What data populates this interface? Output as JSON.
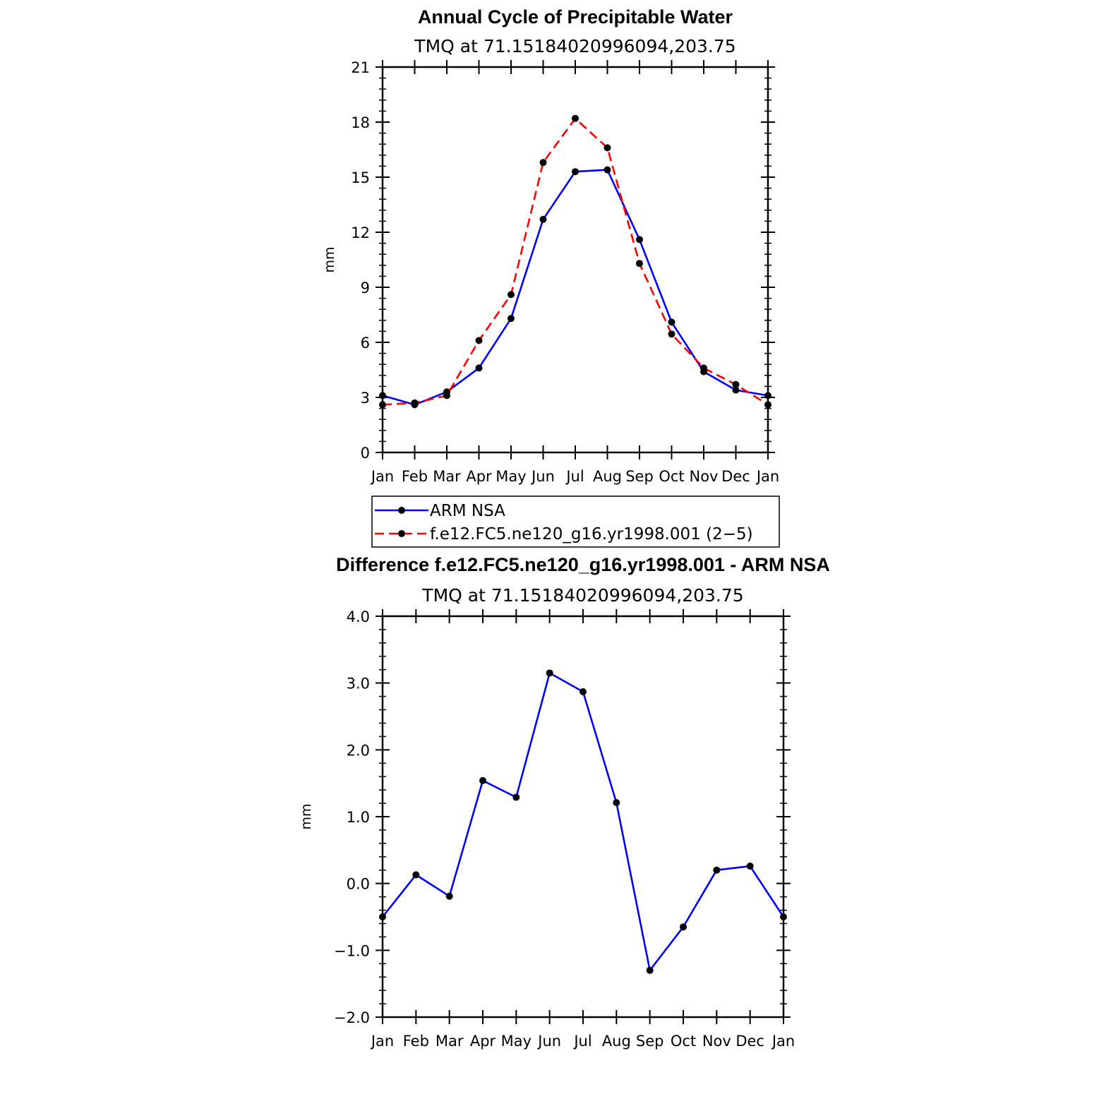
{
  "chart_data": [
    {
      "type": "line",
      "title": "Annual Cycle of Precipitable Water",
      "subtitle": "TMQ at 71.15184020996094,203.75",
      "xlabel": "",
      "ylabel": "mm",
      "categories": [
        "Jan",
        "Feb",
        "Mar",
        "Apr",
        "May",
        "Jun",
        "Jul",
        "Aug",
        "Sep",
        "Oct",
        "Nov",
        "Dec",
        "Jan"
      ],
      "ylim": [
        0,
        21
      ],
      "yticks": [
        0,
        3,
        6,
        9,
        12,
        15,
        18,
        21
      ],
      "ytick_labels": [
        "0",
        "3",
        "6",
        "9",
        "12",
        "15",
        "18",
        "21"
      ],
      "grid": false,
      "legend_position": "bottom",
      "series": [
        {
          "name": "ARM NSA",
          "color": "#0000ff",
          "dash": "solid",
          "values": [
            3.1,
            2.6,
            3.3,
            4.6,
            7.3,
            12.7,
            15.3,
            15.4,
            11.6,
            7.1,
            4.4,
            3.4,
            3.1
          ]
        },
        {
          "name": "f.e12.FC5.ne120_g16.yr1998.001 (2−5)",
          "color": "#ff0000",
          "dash": "dashed",
          "values": [
            2.6,
            2.7,
            3.1,
            6.1,
            8.6,
            15.8,
            18.2,
            16.6,
            10.3,
            6.45,
            4.6,
            3.7,
            2.6
          ]
        }
      ]
    },
    {
      "type": "line",
      "title": "Difference f.e12.FC5.ne120_g16.yr1998.001 - ARM NSA",
      "subtitle": "TMQ at 71.15184020996094,203.75",
      "xlabel": "",
      "ylabel": "mm",
      "categories": [
        "Jan",
        "Feb",
        "Mar",
        "Apr",
        "May",
        "Jun",
        "Jul",
        "Aug",
        "Sep",
        "Oct",
        "Nov",
        "Dec",
        "Jan"
      ],
      "ylim": [
        -2.0,
        4.0
      ],
      "yticks": [
        -2.0,
        -1.0,
        0.0,
        1.0,
        2.0,
        3.0,
        4.0
      ],
      "ytick_labels": [
        "−2.0",
        "−1.0",
        "0.0",
        "1.0",
        "2.0",
        "3.0",
        "4.0"
      ],
      "grid": false,
      "series": [
        {
          "name": "Difference",
          "color": "#0000ff",
          "dash": "solid",
          "values": [
            -0.5,
            0.13,
            -0.19,
            1.54,
            1.29,
            3.15,
            2.87,
            1.21,
            -1.3,
            -0.65,
            0.2,
            0.26,
            -0.5
          ]
        }
      ]
    }
  ]
}
